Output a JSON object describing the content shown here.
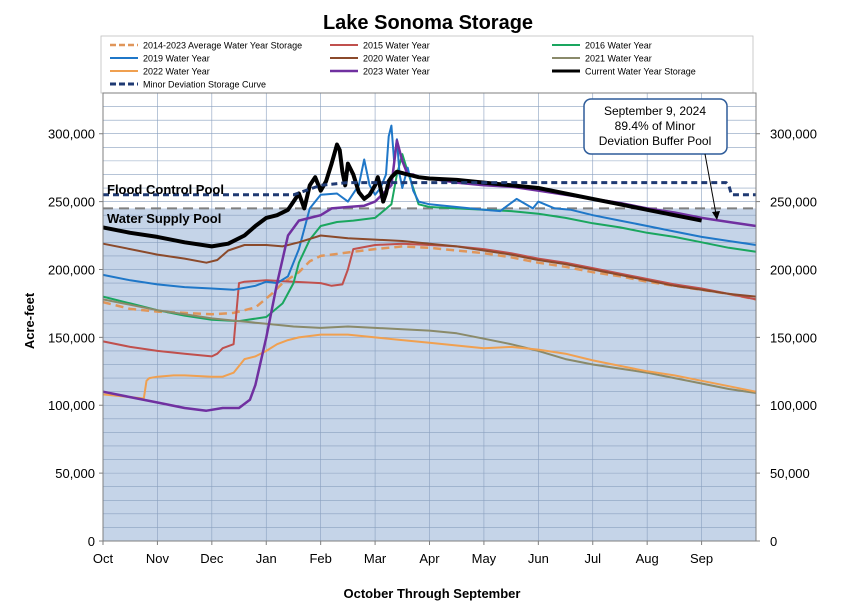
{
  "chart_data": {
    "type": "line",
    "title": "Lake Sonoma Storage",
    "xlabel": "October Through September",
    "ylabel": "Acre-feet",
    "ylim": [
      0,
      330000
    ],
    "xlim": [
      0,
      12
    ],
    "categories": [
      "Oct",
      "Nov",
      "Dec",
      "Jan",
      "Feb",
      "Mar",
      "Apr",
      "May",
      "Jun",
      "Jul",
      "Aug",
      "Sep"
    ],
    "yticks": [
      0,
      50000,
      100000,
      150000,
      200000,
      250000,
      300000
    ],
    "ytick_labels": [
      "0",
      "50,000",
      "100,000",
      "150,000",
      "200,000",
      "250,000",
      "300,000"
    ],
    "water_supply_pool": 245000,
    "pool_labels": {
      "flood": "Flood Control Pool",
      "supply": "Water Supply Pool"
    },
    "annotation": {
      "line1": "September 9, 2024",
      "line2": "89.4% of Minor",
      "line3": "Deviation Buffer Pool"
    },
    "series": [
      {
        "name": "2014-2023 Average Water Year Storage",
        "color": "#e0965a",
        "dash": "8,5",
        "width": 2.5,
        "x": [
          0,
          0.5,
          1,
          1.5,
          2,
          2.4,
          2.8,
          3.1,
          3.3,
          3.6,
          3.8,
          4,
          4.2,
          4.6,
          5,
          5.5,
          6,
          6.5,
          7,
          7.5,
          8,
          8.5,
          9,
          9.5,
          10,
          10.5,
          11,
          11.5,
          12
        ],
        "y": [
          176000,
          171000,
          169000,
          168000,
          167000,
          168000,
          172000,
          182000,
          190000,
          198000,
          206000,
          210000,
          211000,
          213000,
          215000,
          217000,
          216000,
          214000,
          212000,
          209000,
          205000,
          202000,
          198000,
          195000,
          191000,
          188000,
          185000,
          182000,
          178000
        ]
      },
      {
        "name": "2015 Water Year",
        "color": "#c0504d",
        "width": 2,
        "x": [
          0,
          0.5,
          1,
          1.5,
          2,
          2.1,
          2.2,
          2.4,
          2.5,
          2.6,
          3,
          3.5,
          4,
          4.2,
          4.4,
          4.5,
          4.6,
          5,
          5.5,
          6,
          6.5,
          7,
          7.5,
          8,
          8.5,
          9,
          9.5,
          10,
          10.5,
          11,
          11.5,
          12
        ],
        "y": [
          147000,
          143000,
          140000,
          138000,
          136000,
          138000,
          142000,
          145000,
          190000,
          191000,
          192000,
          191000,
          190000,
          188000,
          189000,
          200000,
          215000,
          218000,
          219000,
          218000,
          217000,
          215000,
          212000,
          208000,
          205000,
          201000,
          197000,
          193000,
          189000,
          186000,
          182000,
          178000
        ]
      },
      {
        "name": "2016 Water Year",
        "color": "#1aa65f",
        "width": 2,
        "x": [
          0,
          0.5,
          1,
          1.5,
          2,
          2.5,
          3,
          3.3,
          3.5,
          3.6,
          3.8,
          4,
          4.3,
          4.6,
          5,
          5.3,
          5.4,
          5.5,
          5.6,
          5.7,
          5.8,
          6,
          6.5,
          7,
          7.5,
          8,
          8.5,
          9,
          9.5,
          10,
          10.5,
          11,
          11.5,
          12
        ],
        "y": [
          180000,
          175000,
          170000,
          166000,
          163000,
          162000,
          165000,
          175000,
          190000,
          205000,
          222000,
          232000,
          235000,
          236000,
          238000,
          248000,
          270000,
          285000,
          272000,
          260000,
          248000,
          246000,
          245000,
          244000,
          243000,
          241000,
          238000,
          234000,
          231000,
          227000,
          224000,
          220000,
          216000,
          213000
        ]
      },
      {
        "name": "2019 Water Year",
        "color": "#1f77c8",
        "width": 2,
        "x": [
          0,
          0.5,
          1,
          1.5,
          2,
          2.4,
          2.8,
          3,
          3.2,
          3.4,
          3.6,
          3.8,
          4,
          4.3,
          4.5,
          4.7,
          4.8,
          4.9,
          5,
          5.1,
          5.2,
          5.25,
          5.3,
          5.35,
          5.4,
          5.45,
          5.5,
          5.6,
          5.7,
          5.8,
          6,
          6.5,
          7,
          7.3,
          7.6,
          7.9,
          8,
          8.3,
          8.6,
          9,
          9.5,
          10,
          10.5,
          11,
          11.5,
          12
        ],
        "y": [
          196000,
          192000,
          189000,
          187000,
          186000,
          185000,
          188000,
          191000,
          190000,
          195000,
          215000,
          245000,
          255000,
          256000,
          250000,
          262000,
          281000,
          262000,
          255000,
          260000,
          270000,
          298000,
          306000,
          280000,
          296000,
          270000,
          260000,
          275000,
          258000,
          250000,
          248000,
          246000,
          244000,
          243000,
          252000,
          245000,
          250000,
          245000,
          244000,
          240000,
          236000,
          232000,
          228000,
          224000,
          221000,
          218000
        ]
      },
      {
        "name": "2020 Water Year",
        "color": "#8b4a2b",
        "width": 2,
        "x": [
          0,
          0.5,
          1,
          1.5,
          1.9,
          2.1,
          2.3,
          2.6,
          3,
          3.3,
          3.6,
          4,
          4.5,
          5,
          5.5,
          6,
          6.5,
          7,
          7.5,
          8,
          8.5,
          9,
          9.5,
          10,
          10.5,
          11,
          11.5,
          12
        ],
        "y": [
          219000,
          215000,
          211000,
          208000,
          205000,
          207000,
          214000,
          218000,
          218000,
          217000,
          220000,
          225000,
          223000,
          222000,
          221000,
          219000,
          217000,
          214000,
          211000,
          207000,
          204000,
          200000,
          196000,
          192000,
          188000,
          185000,
          182000,
          180000
        ]
      },
      {
        "name": "2021 Water Year",
        "color": "#8a8a6a",
        "width": 2,
        "x": [
          0,
          0.5,
          1,
          1.5,
          2,
          2.5,
          3,
          3.5,
          4,
          4.5,
          5,
          5.5,
          6,
          6.5,
          7,
          7.5,
          8,
          8.5,
          9,
          9.5,
          10,
          10.5,
          11,
          11.5,
          12
        ],
        "y": [
          178000,
          174000,
          170000,
          167000,
          164000,
          162000,
          160000,
          158000,
          157000,
          158000,
          157000,
          156000,
          155000,
          153000,
          149000,
          145000,
          140000,
          134000,
          130000,
          127000,
          124000,
          120000,
          116000,
          112000,
          109000
        ]
      },
      {
        "name": "2022 Water Year",
        "color": "#f0a050",
        "width": 2,
        "x": [
          0,
          0.5,
          0.75,
          0.8,
          0.85,
          1,
          1.3,
          1.5,
          2,
          2.2,
          2.4,
          2.6,
          2.8,
          3,
          3.2,
          3.4,
          3.6,
          3.8,
          4,
          4.5,
          5,
          5.5,
          6,
          6.5,
          7,
          7.5,
          8,
          8.5,
          9,
          9.5,
          10,
          10.5,
          11,
          11.5,
          12
        ],
        "y": [
          108000,
          106000,
          105000,
          118000,
          120000,
          121000,
          122000,
          122000,
          121000,
          121000,
          124000,
          134000,
          136000,
          140000,
          145000,
          148000,
          150000,
          151000,
          152000,
          152000,
          150000,
          148000,
          146000,
          144000,
          142000,
          143000,
          141000,
          138000,
          133000,
          129000,
          125000,
          122000,
          118000,
          114000,
          110000
        ]
      },
      {
        "name": "2023 Water Year",
        "color": "#7030a0",
        "width": 2.5,
        "x": [
          0,
          0.5,
          1,
          1.5,
          1.9,
          2.2,
          2.5,
          2.7,
          2.8,
          3,
          3.2,
          3.4,
          3.6,
          3.8,
          4,
          4.2,
          4.5,
          4.8,
          5,
          5.3,
          5.4,
          5.5,
          5.6,
          5.7,
          5.8,
          6,
          6.5,
          7,
          7.5,
          8,
          8.5,
          9,
          9.5,
          10,
          10.5,
          11,
          11.5,
          12
        ],
        "y": [
          110000,
          106000,
          102000,
          98000,
          96000,
          98000,
          98000,
          104000,
          115000,
          150000,
          190000,
          225000,
          236000,
          238000,
          240000,
          245000,
          246000,
          247000,
          250000,
          262000,
          295000,
          280000,
          270000,
          270000,
          268000,
          267000,
          264000,
          262000,
          261000,
          258000,
          255000,
          252000,
          249000,
          245000,
          242000,
          238000,
          235000,
          232000
        ]
      },
      {
        "name": "Current Water Year Storage",
        "color": "#000000",
        "width": 4,
        "x": [
          0,
          0.5,
          1,
          1.5,
          2,
          2.3,
          2.6,
          2.8,
          3,
          3.2,
          3.4,
          3.5,
          3.6,
          3.7,
          3.8,
          3.9,
          4,
          4.1,
          4.2,
          4.3,
          4.35,
          4.4,
          4.45,
          4.5,
          4.6,
          4.7,
          4.8,
          4.9,
          5,
          5.05,
          5.1,
          5.15,
          5.2,
          5.25,
          5.3,
          5.4,
          5.5,
          5.6,
          5.7,
          5.8,
          6,
          6.5,
          7,
          7.5,
          8,
          8.5,
          9,
          9.5,
          10,
          10.5,
          11
        ],
        "y": [
          231000,
          227000,
          224000,
          220000,
          217000,
          219000,
          225000,
          232000,
          238000,
          240000,
          244000,
          250000,
          256000,
          245000,
          262000,
          268000,
          258000,
          265000,
          278000,
          292000,
          288000,
          272000,
          262000,
          278000,
          270000,
          257000,
          252000,
          255000,
          262000,
          268000,
          260000,
          250000,
          256000,
          265000,
          268000,
          272000,
          271000,
          270000,
          269000,
          268000,
          267000,
          266000,
          264000,
          262000,
          260000,
          256000,
          252000,
          248000,
          244000,
          240000,
          236000
        ]
      },
      {
        "name": "Minor Deviation Storage Curve",
        "color": "#1f3a73",
        "dash": "6,4",
        "width": 3,
        "x": [
          0,
          0.5,
          1,
          2,
          3,
          3.5,
          4,
          4.5,
          5,
          6,
          7,
          8,
          9,
          10,
          11,
          11.45,
          11.5,
          11.55,
          12
        ],
        "y": [
          255000,
          255000,
          255000,
          255000,
          255000,
          255000,
          262000,
          264000,
          264000,
          264000,
          264000,
          264000,
          264000,
          264000,
          264000,
          264000,
          262000,
          255000,
          255000
        ]
      }
    ]
  }
}
